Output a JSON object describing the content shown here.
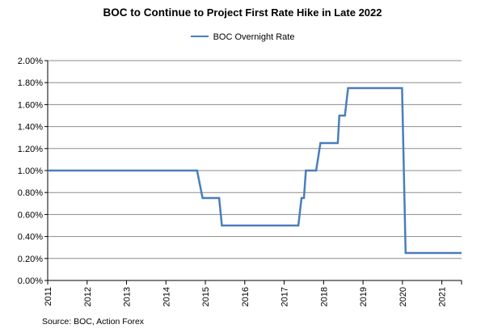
{
  "title_part1": "BOC to Continue",
  "title_part2": "to Project First Rate Hike in Late 2022",
  "source": "Source: BOC, Action Forex",
  "chart_data": {
    "type": "line",
    "title": "BOC to Continue to Project First Rate Hike in Late 2022",
    "xlabel": "",
    "ylabel": "",
    "xlim": [
      2011.0,
      2021.5
    ],
    "ylim": [
      0.0,
      2.0
    ],
    "y_ticks": [
      "0.00%",
      "0.20%",
      "0.40%",
      "0.60%",
      "0.80%",
      "1.00%",
      "1.20%",
      "1.40%",
      "1.60%",
      "1.80%",
      "2.00%"
    ],
    "x_ticks": [
      "2011",
      "2012",
      "2013",
      "2014",
      "2015",
      "2016",
      "2017",
      "2018",
      "2019",
      "2020",
      "2021"
    ],
    "grid": "horizontal",
    "legend_position": "top-center",
    "series": [
      {
        "name": "BOC Overnight Rate",
        "color": "#4a7ebb",
        "points": [
          [
            2011.0,
            1.0
          ],
          [
            2014.79,
            1.0
          ],
          [
            2014.93,
            0.75
          ],
          [
            2015.35,
            0.75
          ],
          [
            2015.42,
            0.5
          ],
          [
            2017.36,
            0.5
          ],
          [
            2017.44,
            0.75
          ],
          [
            2017.5,
            0.75
          ],
          [
            2017.55,
            1.0
          ],
          [
            2017.81,
            1.0
          ],
          [
            2017.92,
            1.25
          ],
          [
            2018.36,
            1.25
          ],
          [
            2018.4,
            1.5
          ],
          [
            2018.54,
            1.5
          ],
          [
            2018.62,
            1.75
          ],
          [
            2019.99,
            1.75
          ],
          [
            2020.08,
            0.25
          ],
          [
            2021.5,
            0.25
          ]
        ]
      }
    ]
  }
}
